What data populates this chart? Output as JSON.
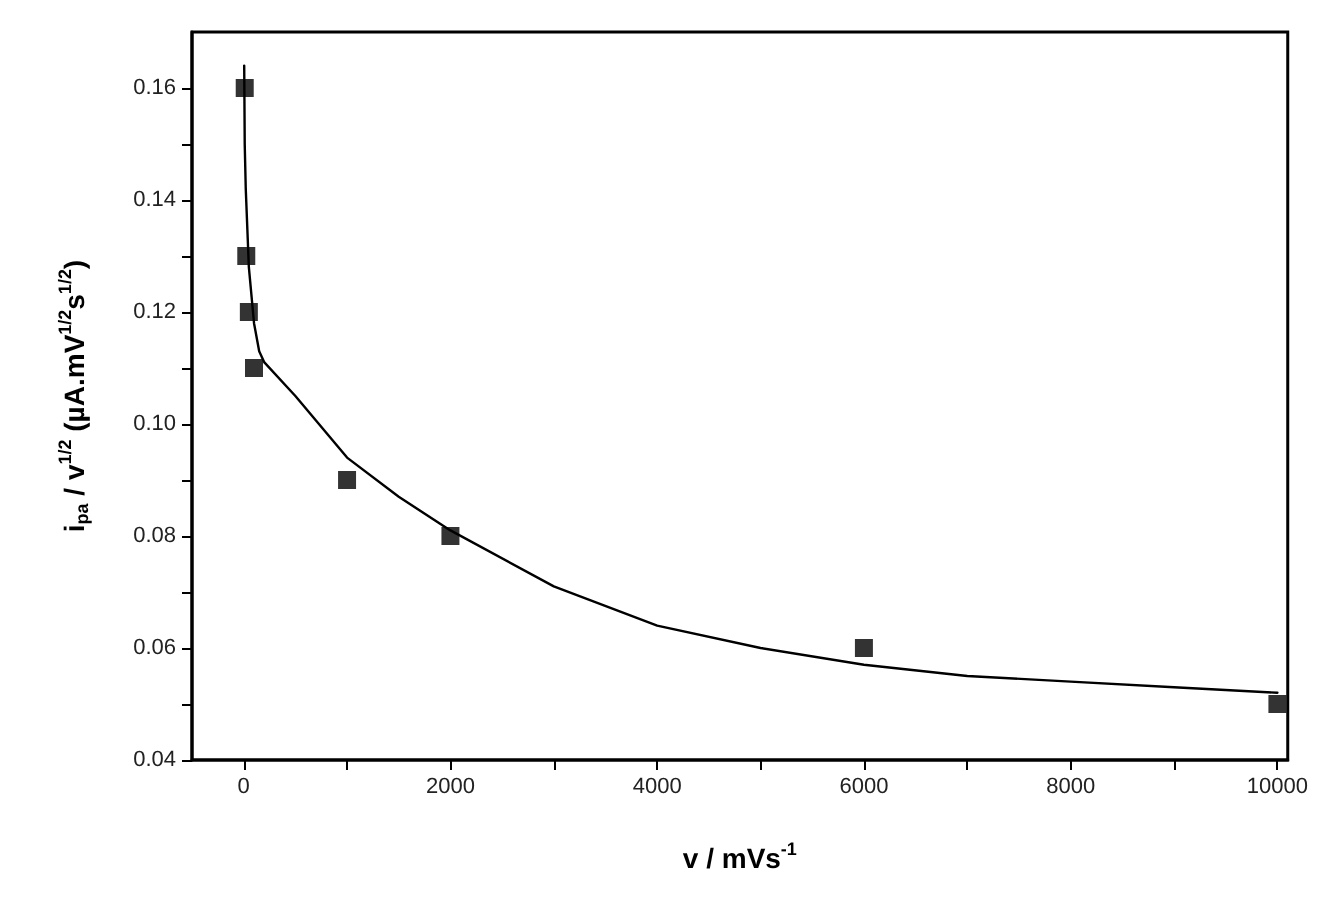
{
  "chart_data": {
    "type": "scatter",
    "xlabel": "v / mVs$^{-1}$",
    "ylabel": "i$_{pa}$ / v$^{1/2}$ (µA.mV$^{1/2}$s$^{1/2}$)",
    "xlim": [
      -500,
      10100
    ],
    "xticks": [
      0,
      2000,
      4000,
      6000,
      8000,
      10000
    ],
    "ylim": [
      0.04,
      0.17
    ],
    "yticks": [
      {
        "value": 0.04,
        "label": "0.04"
      },
      {
        "value": 0.06,
        "label": "0.06"
      },
      {
        "value": 0.08,
        "label": "0.08"
      },
      {
        "value": 0.1,
        "label": "0.10"
      },
      {
        "value": 0.12,
        "label": "0.12"
      },
      {
        "value": 0.14,
        "label": "0.14"
      },
      {
        "value": 0.16,
        "label": "0.16"
      }
    ],
    "series": [
      {
        "marker": "square",
        "color": "#000000",
        "x": [
          10,
          25,
          50,
          100,
          1000,
          2000,
          6000,
          10000
        ],
        "values": [
          0.16,
          0.13,
          0.12,
          0.11,
          0.09,
          0.08,
          0.06,
          0.05
        ]
      },
      {
        "type": "line",
        "marker": "none",
        "line_style": "solid",
        "color": "#000000",
        "x": [
          5,
          10,
          20,
          50,
          100,
          150,
          200,
          500,
          1000,
          1500,
          2000,
          3000,
          4000,
          5000,
          6000,
          7000,
          8000,
          9000,
          10000
        ],
        "values": [
          0.164,
          0.15,
          0.142,
          0.128,
          0.118,
          0.113,
          0.111,
          0.105,
          0.094,
          0.087,
          0.081,
          0.071,
          0.064,
          0.06,
          0.057,
          0.055,
          0.054,
          0.053,
          0.052
        ]
      }
    ]
  }
}
